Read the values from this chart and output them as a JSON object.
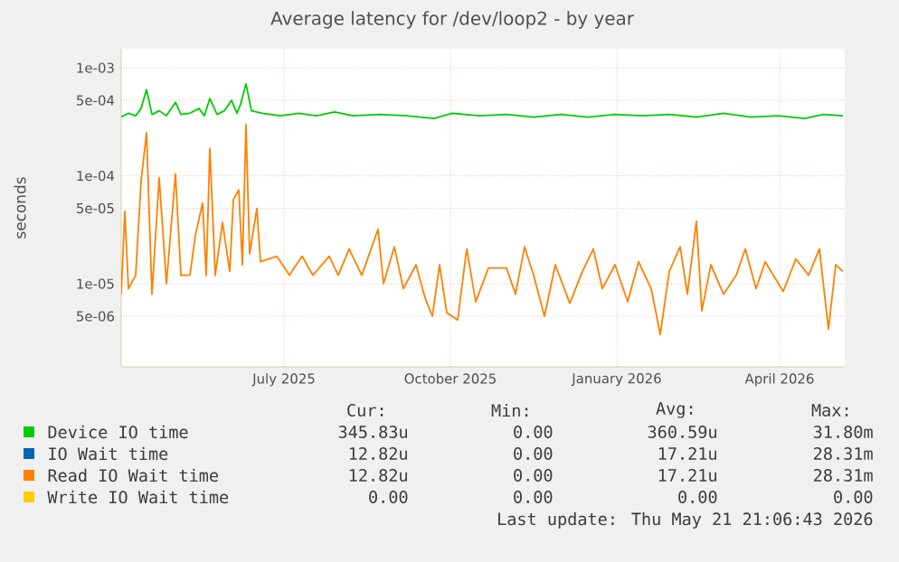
{
  "chart_data": {
    "type": "line",
    "title": "Average latency for /dev/loop2 - by year",
    "ylabel": "seconds",
    "log": "y",
    "grid": true,
    "legend": "bottom",
    "xlim": [
      "2025-04-02",
      "2026-05-07"
    ],
    "ylim": [
      1.7e-06,
      0.0015
    ],
    "xticks": [
      {
        "value": "2025-07-01",
        "label": "July 2025"
      },
      {
        "value": "2025-10-01",
        "label": "October 2025"
      },
      {
        "value": "2026-01-01",
        "label": "January 2026"
      },
      {
        "value": "2026-04-01",
        "label": "April 2026"
      }
    ],
    "yticks": [
      {
        "value": 0.001,
        "label": "1e-03"
      },
      {
        "value": 0.0005,
        "label": "5e-04"
      },
      {
        "value": 0.0001,
        "label": "1e-04"
      },
      {
        "value": 5e-05,
        "label": "5e-05"
      },
      {
        "value": 1e-05,
        "label": "1e-05"
      },
      {
        "value": 5e-06,
        "label": "5e-06"
      }
    ],
    "series": [
      {
        "name": "Device IO time",
        "color": "#00cc00",
        "x": [
          "2025-04-02",
          "2025-04-06",
          "2025-04-10",
          "2025-04-13",
          "2025-04-16",
          "2025-04-19",
          "2025-04-23",
          "2025-04-27",
          "2025-05-02",
          "2025-05-05",
          "2025-05-10",
          "2025-05-15",
          "2025-05-18",
          "2025-05-21",
          "2025-05-25",
          "2025-05-29",
          "2025-06-02",
          "2025-06-05",
          "2025-06-07",
          "2025-06-10",
          "2025-06-13",
          "2025-06-19",
          "2025-06-29",
          "2025-07-09",
          "2025-07-19",
          "2025-07-29",
          "2025-08-08",
          "2025-08-23",
          "2025-09-07",
          "2025-09-22",
          "2025-10-02",
          "2025-10-17",
          "2025-11-01",
          "2025-11-16",
          "2025-12-01",
          "2025-12-16",
          "2025-12-31",
          "2026-01-15",
          "2026-01-30",
          "2026-02-14",
          "2026-03-01",
          "2026-03-16",
          "2026-03-31",
          "2026-04-15",
          "2026-04-25",
          "2026-05-06"
        ],
        "values": [
          0.00035,
          0.00038,
          0.00036,
          0.00042,
          0.00063,
          0.00037,
          0.0004,
          0.00036,
          0.00048,
          0.00037,
          0.00038,
          0.00042,
          0.00036,
          0.00052,
          0.00037,
          0.0004,
          0.0005,
          0.00038,
          0.00046,
          0.00071,
          0.0004,
          0.00038,
          0.00036,
          0.00038,
          0.00036,
          0.00039,
          0.00036,
          0.00037,
          0.00036,
          0.00034,
          0.00038,
          0.00036,
          0.00037,
          0.00035,
          0.00037,
          0.00035,
          0.00037,
          0.00036,
          0.00037,
          0.00035,
          0.00038,
          0.00035,
          0.00036,
          0.00034,
          0.00037,
          0.00036
        ]
      },
      {
        "name": "IO Wait time",
        "color": "#0066b3"
      },
      {
        "name": "Read IO Wait time",
        "color": "#ff8000",
        "x": [
          "2025-04-02",
          "2025-04-04",
          "2025-04-06",
          "2025-04-10",
          "2025-04-13",
          "2025-04-16",
          "2025-04-19",
          "2025-04-23",
          "2025-04-27",
          "2025-05-02",
          "2025-05-05",
          "2025-05-10",
          "2025-05-13",
          "2025-05-17",
          "2025-05-19",
          "2025-05-21",
          "2025-05-24",
          "2025-05-28",
          "2025-06-01",
          "2025-06-03",
          "2025-06-06",
          "2025-06-08",
          "2025-06-10",
          "2025-06-12",
          "2025-06-16",
          "2025-06-18",
          "2025-06-27",
          "2025-07-04",
          "2025-07-11",
          "2025-07-17",
          "2025-07-26",
          "2025-07-31",
          "2025-08-06",
          "2025-08-13",
          "2025-08-22",
          "2025-08-25",
          "2025-08-31",
          "2025-09-05",
          "2025-09-12",
          "2025-09-17",
          "2025-09-21",
          "2025-09-25",
          "2025-09-29",
          "2025-10-05",
          "2025-10-10",
          "2025-10-15",
          "2025-10-22",
          "2025-11-01",
          "2025-11-06",
          "2025-11-11",
          "2025-11-16",
          "2025-11-22",
          "2025-11-28",
          "2025-12-06",
          "2025-12-13",
          "2025-12-19",
          "2025-12-24",
          "2025-12-31",
          "2026-01-07",
          "2026-01-13",
          "2026-01-20",
          "2026-01-25",
          "2026-01-30",
          "2026-02-05",
          "2026-02-09",
          "2026-02-14",
          "2026-02-17",
          "2026-02-22",
          "2026-03-01",
          "2026-03-08",
          "2026-03-13",
          "2026-03-19",
          "2026-03-24",
          "2026-04-03",
          "2026-04-10",
          "2026-04-17",
          "2026-04-23",
          "2026-04-28",
          "2026-05-02",
          "2026-05-06"
        ],
        "values": [
          8e-06,
          4.7e-05,
          9e-06,
          1.2e-05,
          8.9e-05,
          0.00025,
          8e-06,
          9.6e-05,
          1e-05,
          0.000104,
          1.2e-05,
          1.2e-05,
          2.8e-05,
          5.6e-05,
          1.2e-05,
          0.00018,
          1.2e-05,
          3.7e-05,
          1.3e-05,
          6e-05,
          7.4e-05,
          1.5e-05,
          0.0003,
          1.9e-05,
          5e-05,
          1.6e-05,
          1.8e-05,
          1.2e-05,
          1.8e-05,
          1.2e-05,
          1.8e-05,
          1.2e-05,
          2.1e-05,
          1.2e-05,
          3.2e-05,
          1e-05,
          2.2e-05,
          9e-06,
          1.5e-05,
          7.4e-06,
          5e-06,
          1.5e-05,
          5.4e-06,
          4.6e-06,
          2.1e-05,
          6.8e-06,
          1.4e-05,
          1.4e-05,
          8e-06,
          2.2e-05,
          1.2e-05,
          5e-06,
          1.5e-05,
          6.6e-06,
          1.3e-05,
          2.1e-05,
          9e-06,
          1.5e-05,
          6.8e-06,
          1.6e-05,
          9e-06,
          3.4e-06,
          1.3e-05,
          2.2e-05,
          8e-06,
          3.8e-05,
          5.6e-06,
          1.5e-05,
          8e-06,
          1.2e-05,
          2.1e-05,
          9e-06,
          1.6e-05,
          8.5e-06,
          1.7e-05,
          1.2e-05,
          2.1e-05,
          3.8e-06,
          1.5e-05,
          1.3e-05
        ]
      },
      {
        "name": "Write IO Wait time",
        "color": "#ffcc00"
      }
    ],
    "annotations": [
      "Cur:",
      "Min:",
      "Avg:",
      "Max:",
      "345.83u",
      "0.00",
      "360.59u",
      "31.80m",
      "12.82u",
      "0.00",
      "17.21u",
      "28.31m",
      "12.82u",
      "0.00",
      "17.21u",
      "28.31m",
      "0.00",
      "0.00",
      "0.00",
      "0.00",
      "Last update: Thu May 21 21:06:43 2026"
    ]
  }
}
